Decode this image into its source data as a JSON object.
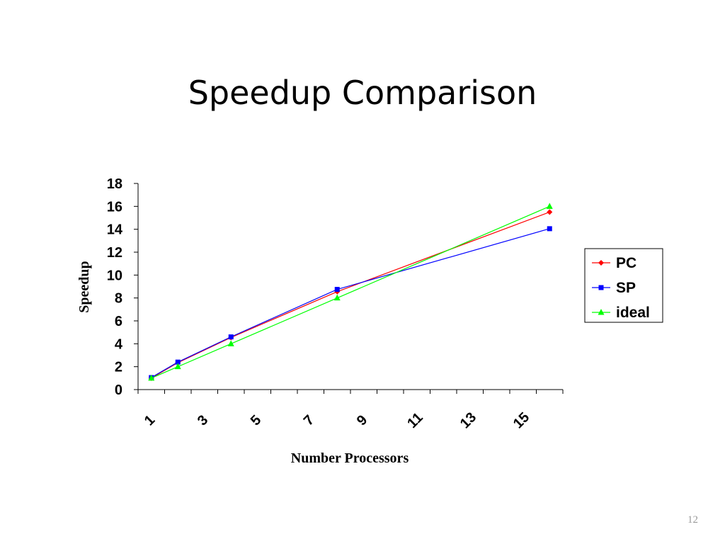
{
  "slide": {
    "title": "Speedup Comparison",
    "page_number": "12"
  },
  "chart_data": {
    "type": "line",
    "title": "",
    "xlabel": "Number Processors",
    "ylabel": "Speedup",
    "x_tick_labels": [
      "1",
      "3",
      "5",
      "7",
      "9",
      "11",
      "13",
      "15"
    ],
    "y_tick_labels": [
      "0",
      "2",
      "4",
      "6",
      "8",
      "10",
      "12",
      "14",
      "16",
      "18"
    ],
    "ylim": [
      0,
      18
    ],
    "x": [
      1,
      2,
      4,
      8,
      16
    ],
    "series": [
      {
        "name": "PC",
        "color": "#ff0000",
        "marker": "diamond",
        "values": [
          1.0,
          2.35,
          4.55,
          8.55,
          15.5
        ]
      },
      {
        "name": "SP",
        "color": "#0000ff",
        "marker": "square",
        "values": [
          1.05,
          2.4,
          4.6,
          8.75,
          14.05
        ]
      },
      {
        "name": "ideal",
        "color": "#00ff00",
        "marker": "triangle",
        "values": [
          1,
          2,
          4,
          8,
          16
        ]
      }
    ],
    "legend": "right",
    "grid": false
  }
}
